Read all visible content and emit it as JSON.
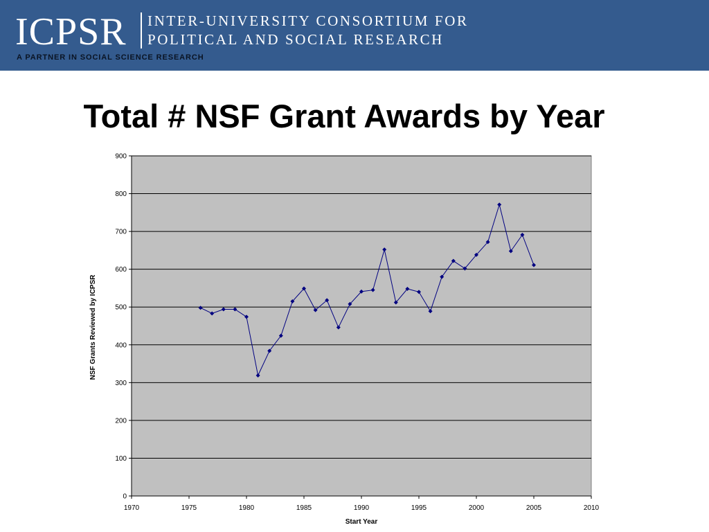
{
  "header": {
    "logo_text": "ICPSR",
    "org_line1": "INTER-UNIVERSITY CONSORTIUM FOR",
    "org_line2": "POLITICAL AND SOCIAL RESEARCH",
    "tagline": "A PARTNER IN SOCIAL SCIENCE RESEARCH",
    "background_color": "#345b8e"
  },
  "slide": {
    "title": "Total # NSF Grant Awards by Year"
  },
  "chart_data": {
    "type": "line",
    "title": "Total # NSF Grant Awards by Year",
    "xlabel": "Start Year",
    "ylabel": "NSF Grants Reviewed by ICPSR",
    "xlim": [
      1970,
      2010
    ],
    "ylim": [
      0,
      900
    ],
    "x_ticks": [
      1970,
      1975,
      1980,
      1985,
      1990,
      1995,
      2000,
      2005,
      2010
    ],
    "y_ticks": [
      0,
      100,
      200,
      300,
      400,
      500,
      600,
      700,
      800,
      900
    ],
    "grid": "horizontal",
    "plot_background": "#c0c0c0",
    "line_color": "#000080",
    "marker": "diamond",
    "series": [
      {
        "x": [
          1976,
          1977,
          1978,
          1979,
          1980,
          1981,
          1982,
          1983,
          1984,
          1985,
          1986,
          1987,
          1988,
          1989,
          1990,
          1991,
          1992,
          1993,
          1994,
          1995,
          1996,
          1997,
          1998,
          1999,
          2000,
          2001,
          2002,
          2003,
          2004,
          2005
        ],
        "values": [
          498,
          483,
          494,
          494,
          474,
          319,
          384,
          424,
          515,
          549,
          492,
          518,
          446,
          508,
          541,
          545,
          652,
          512,
          548,
          540,
          489,
          580,
          622,
          602,
          638,
          672,
          771,
          648,
          691,
          611
        ]
      }
    ]
  }
}
